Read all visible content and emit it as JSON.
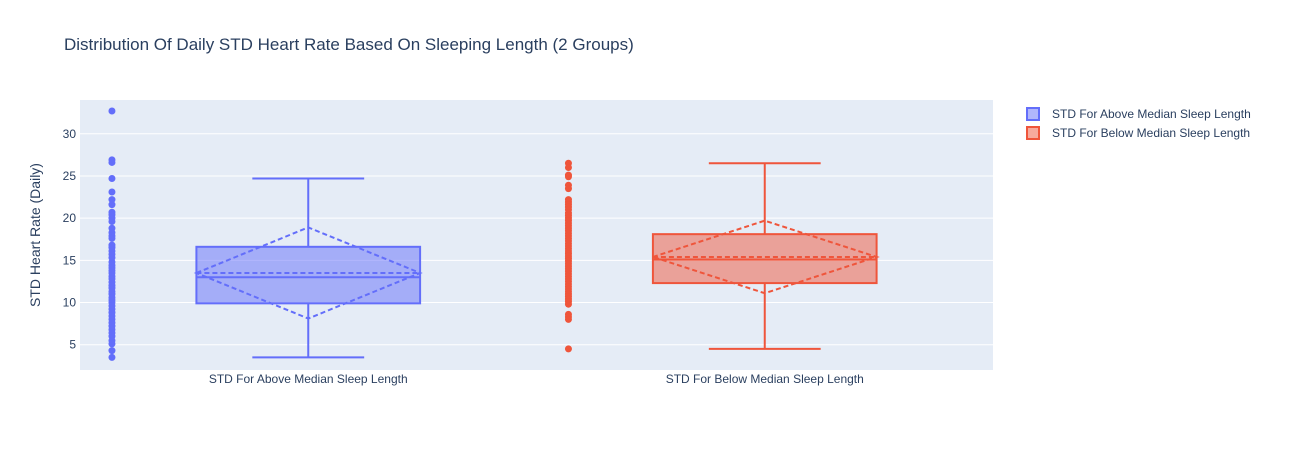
{
  "chart_data": {
    "type": "box",
    "title": "Distribution Of Daily STD Heart Rate Based On Sleeping Length (2 Groups)",
    "xlabel": "",
    "ylabel": "STD Heart Rate (Daily)",
    "ylim": [
      2,
      34
    ],
    "yticks": [
      5,
      10,
      15,
      20,
      25,
      30
    ],
    "grid": true,
    "legend_position": "top-right",
    "categories": [
      "STD For Above Median Sleep Length",
      "STD For Below Median Sleep Length"
    ],
    "series": [
      {
        "name": "STD For Above Median Sleep Length",
        "color": "#636efa",
        "min": 3.5,
        "q1": 9.9,
        "median": 13.0,
        "q3": 16.6,
        "max": 24.7,
        "mean": 13.5,
        "mean_minus_sd": 8.1,
        "mean_plus_sd": 18.9,
        "points": [
          32.7,
          26.9,
          26.6,
          24.7,
          23.1,
          22.2,
          21.6,
          20.7,
          20.4,
          20.0,
          19.6,
          18.8,
          18.3,
          17.9,
          17.6,
          16.8,
          16.5,
          16.1,
          15.7,
          15.3,
          14.8,
          14.4,
          14.1,
          13.8,
          13.5,
          13.1,
          12.8,
          12.4,
          12.0,
          11.7,
          11.3,
          11.0,
          10.6,
          10.3,
          10.0,
          9.6,
          9.2,
          8.8,
          8.4,
          8.0,
          7.6,
          7.2,
          6.8,
          6.4,
          6.0,
          5.5,
          5.1,
          4.3,
          3.5
        ]
      },
      {
        "name": "STD For Below Median Sleep Length",
        "color": "#ef553b",
        "min": 4.5,
        "q1": 12.3,
        "median": 15.1,
        "q3": 18.1,
        "max": 26.5,
        "mean": 15.4,
        "mean_minus_sd": 11.1,
        "mean_plus_sd": 19.7,
        "points": [
          26.5,
          26.0,
          25.1,
          24.9,
          23.9,
          23.5,
          22.2,
          21.9,
          21.6,
          21.3,
          21.0,
          20.6,
          20.3,
          20.0,
          19.7,
          19.4,
          19.1,
          18.8,
          18.5,
          18.2,
          17.9,
          17.6,
          17.3,
          17.0,
          16.7,
          16.4,
          16.1,
          15.8,
          15.5,
          15.2,
          14.9,
          14.6,
          14.3,
          14.0,
          13.7,
          13.4,
          13.1,
          12.8,
          12.5,
          12.2,
          11.9,
          11.6,
          11.3,
          11.0,
          10.7,
          10.4,
          10.1,
          9.8,
          8.6,
          8.3,
          8.0,
          4.5
        ]
      }
    ]
  }
}
